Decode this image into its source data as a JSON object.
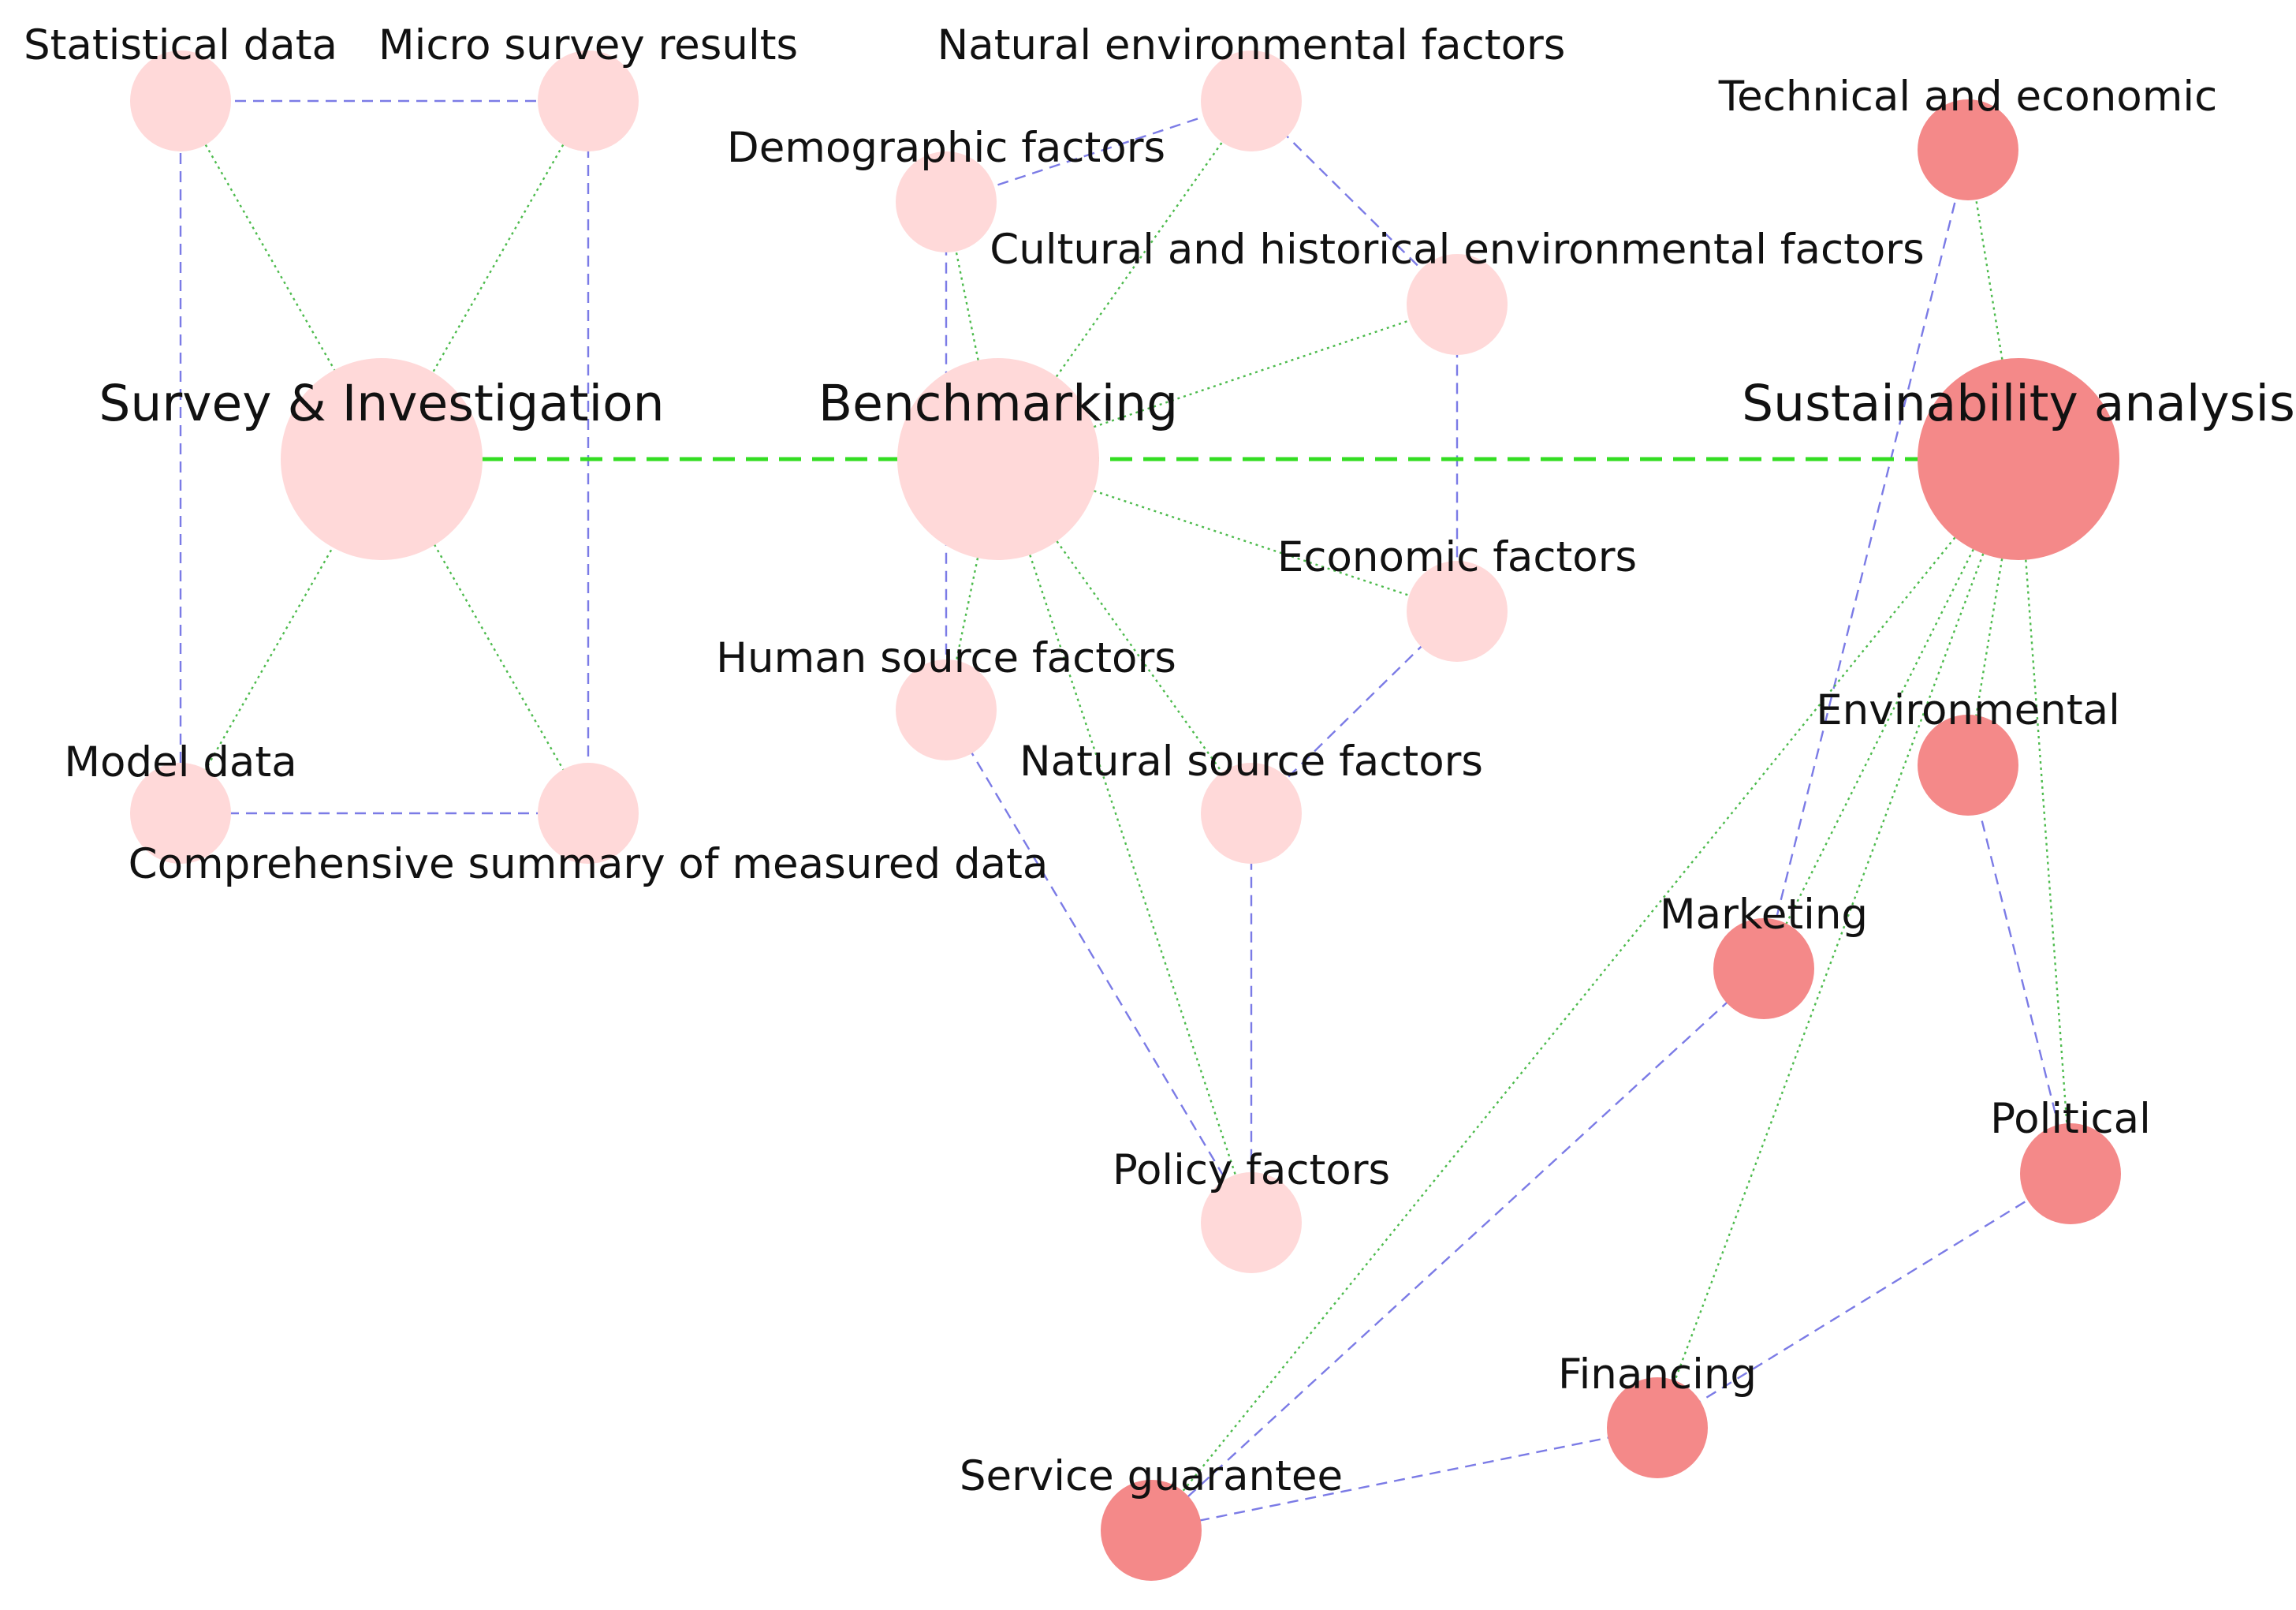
{
  "colors": {
    "light_node": "#ffd9d9",
    "dark_node": "#f48989",
    "green_edge": "#4dbb4d",
    "blue_edge": "#7b7be6",
    "flow_arrow": "#33dd22"
  },
  "nodes": {
    "survey": {
      "label": "Survey & Investigation"
    },
    "statistical": {
      "label": "Statistical data"
    },
    "micro_survey": {
      "label": "Micro survey results"
    },
    "model_data": {
      "label": "Model data"
    },
    "comprehensive": {
      "label": "Comprehensive summary of measured data"
    },
    "benchmarking": {
      "label": "Benchmarking"
    },
    "natural_env": {
      "label": "Natural environmental factors"
    },
    "demographic": {
      "label": "Demographic factors"
    },
    "cultural": {
      "label": "Cultural and historical environmental factors"
    },
    "economic": {
      "label": "Economic factors"
    },
    "human_source": {
      "label": "Human source factors"
    },
    "natural_source": {
      "label": "Natural source factors"
    },
    "policy": {
      "label": "Policy factors"
    },
    "sustainability": {
      "label": "Sustainability analysis"
    },
    "technical": {
      "label": "Technical and economic"
    },
    "environmental": {
      "label": "Environmental"
    },
    "marketing": {
      "label": "Marketing"
    },
    "political": {
      "label": "Political"
    },
    "financing": {
      "label": "Financing"
    },
    "service": {
      "label": "Service guarantee"
    }
  }
}
